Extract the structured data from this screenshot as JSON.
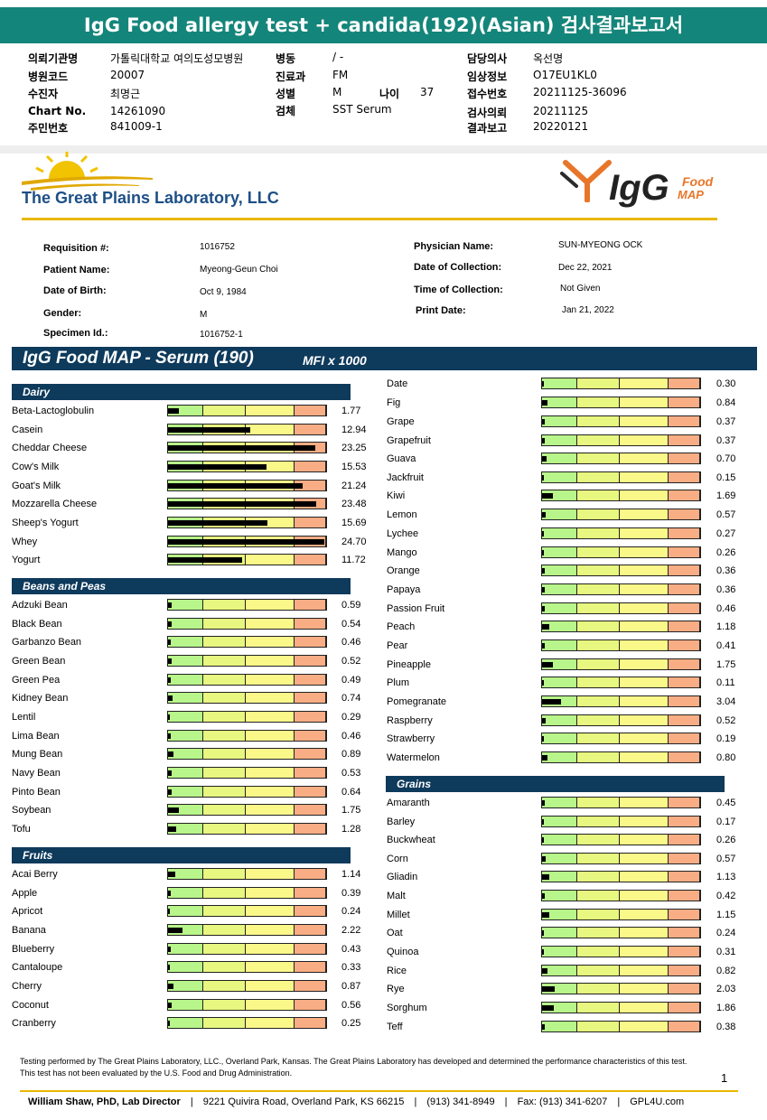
{
  "header": {
    "title": "IgG Food allergy test + candida(192)(Asian) 검사결과보고서",
    "col1": [
      {
        "label": "의뢰기관명",
        "value": "가톨릭대학교 여의도성모병원"
      },
      {
        "label": "병원코드",
        "value": "20007"
      },
      {
        "label": "수진자",
        "value": "최명근"
      },
      {
        "label": "Chart No.",
        "value": "14261090"
      },
      {
        "label": "주민번호",
        "value": "841009-1"
      }
    ],
    "col2": [
      {
        "label": "병동",
        "value": "/ -"
      },
      {
        "label": "진료과",
        "value": "FM"
      },
      {
        "label": "성별",
        "value": "M"
      },
      {
        "label": "검체",
        "value": "SST Serum"
      }
    ],
    "age": {
      "label": "나이",
      "value": "37"
    },
    "col3": [
      {
        "label": "담당의사",
        "value": "옥선명"
      },
      {
        "label": "임상정보",
        "value": "O17EU1KL0"
      },
      {
        "label": "접수번호",
        "value": "20211125-36096"
      },
      {
        "label": "검사의뢰",
        "value": "20211125"
      },
      {
        "label": "결과보고",
        "value": "20220121"
      }
    ]
  },
  "lab": {
    "name": "The Great Plains Laboratory, LLC",
    "logo_main": "IgG",
    "logo_food": "Food",
    "logo_map": "MAP",
    "colors": {
      "gold": "#e8b800",
      "navy": "#0e3a5c",
      "orange": "#e8762a"
    }
  },
  "patient": {
    "left": [
      {
        "label": "Requisition #:",
        "value": "1016752"
      },
      {
        "label": "Patient Name:",
        "value": "Myeong-Geun Choi"
      },
      {
        "label": "Date of Birth:",
        "value": "Oct 9, 1984"
      },
      {
        "label": "Gender:",
        "value": "M"
      },
      {
        "label": "Specimen Id.:",
        "value": "1016752-1"
      }
    ],
    "right": [
      {
        "label": "Physician Name:",
        "value": "SUN-MYEONG OCK"
      },
      {
        "label": "Date of Collection:",
        "value": "Dec 22, 2021"
      },
      {
        "label": "Time of Collection:",
        "value": "Not Given"
      },
      {
        "label": "Print Date:",
        "value": "Jan 21, 2022"
      }
    ]
  },
  "report": {
    "title": "IgG Food MAP - Serum (190)",
    "units": "MFI x 1000",
    "scale_max": 25,
    "zone_colors": [
      "#b8f58a",
      "#e8f780",
      "#fbf88a",
      "#f9ad84"
    ],
    "sections": [
      {
        "name": "Dairy",
        "items": [
          {
            "name": "Beta-Lactoglobulin",
            "value": "1.77"
          },
          {
            "name": "Casein",
            "value": "12.94"
          },
          {
            "name": "Cheddar Cheese",
            "value": "23.25"
          },
          {
            "name": "Cow's Milk",
            "value": "15.53"
          },
          {
            "name": "Goat's Milk",
            "value": "21.24"
          },
          {
            "name": "Mozzarella Cheese",
            "value": "23.48"
          },
          {
            "name": "Sheep's Yogurt",
            "value": "15.69"
          },
          {
            "name": "Whey",
            "value": "24.70"
          },
          {
            "name": "Yogurt",
            "value": "11.72"
          }
        ]
      },
      {
        "name": "Beans and Peas",
        "items": [
          {
            "name": "Adzuki Bean",
            "value": "0.59"
          },
          {
            "name": "Black Bean",
            "value": "0.54"
          },
          {
            "name": "Garbanzo Bean",
            "value": "0.46"
          },
          {
            "name": "Green Bean",
            "value": "0.52"
          },
          {
            "name": "Green Pea",
            "value": "0.49"
          },
          {
            "name": "Kidney Bean",
            "value": "0.74"
          },
          {
            "name": "Lentil",
            "value": "0.29"
          },
          {
            "name": "Lima Bean",
            "value": "0.46"
          },
          {
            "name": "Mung Bean",
            "value": "0.89"
          },
          {
            "name": "Navy Bean",
            "value": "0.53"
          },
          {
            "name": "Pinto Bean",
            "value": "0.64"
          },
          {
            "name": "Soybean",
            "value": "1.75"
          },
          {
            "name": "Tofu",
            "value": "1.28"
          }
        ]
      },
      {
        "name": "Fruits",
        "items": [
          {
            "name": "Acai Berry",
            "value": "1.14"
          },
          {
            "name": "Apple",
            "value": "0.39"
          },
          {
            "name": "Apricot",
            "value": "0.24"
          },
          {
            "name": "Banana",
            "value": "2.22"
          },
          {
            "name": "Blueberry",
            "value": "0.43"
          },
          {
            "name": "Cantaloupe",
            "value": "0.33"
          },
          {
            "name": "Cherry",
            "value": "0.87"
          },
          {
            "name": "Coconut",
            "value": "0.56"
          },
          {
            "name": "Cranberry",
            "value": "0.25"
          }
        ]
      },
      {
        "name": "",
        "items": [
          {
            "name": "Date",
            "value": "0.30"
          },
          {
            "name": "Fig",
            "value": "0.84"
          },
          {
            "name": "Grape",
            "value": "0.37"
          },
          {
            "name": "Grapefruit",
            "value": "0.37"
          },
          {
            "name": "Guava",
            "value": "0.70"
          },
          {
            "name": "Jackfruit",
            "value": "0.15"
          },
          {
            "name": "Kiwi",
            "value": "1.69"
          },
          {
            "name": "Lemon",
            "value": "0.57"
          },
          {
            "name": "Lychee",
            "value": "0.27"
          },
          {
            "name": "Mango",
            "value": "0.26"
          },
          {
            "name": "Orange",
            "value": "0.36"
          },
          {
            "name": "Papaya",
            "value": "0.36"
          },
          {
            "name": "Passion Fruit",
            "value": "0.46"
          },
          {
            "name": "Peach",
            "value": "1.18"
          },
          {
            "name": "Pear",
            "value": "0.41"
          },
          {
            "name": "Pineapple",
            "value": "1.75"
          },
          {
            "name": "Plum",
            "value": "0.11"
          },
          {
            "name": "Pomegranate",
            "value": "3.04"
          },
          {
            "name": "Raspberry",
            "value": "0.52"
          },
          {
            "name": "Strawberry",
            "value": "0.19"
          },
          {
            "name": "Watermelon",
            "value": "0.80"
          }
        ]
      },
      {
        "name": "Grains",
        "items": [
          {
            "name": "Amaranth",
            "value": "0.45"
          },
          {
            "name": "Barley",
            "value": "0.17"
          },
          {
            "name": "Buckwheat",
            "value": "0.26"
          },
          {
            "name": "Corn",
            "value": "0.57"
          },
          {
            "name": "Gliadin",
            "value": "1.13"
          },
          {
            "name": "Malt",
            "value": "0.42"
          },
          {
            "name": "Millet",
            "value": "1.15"
          },
          {
            "name": "Oat",
            "value": "0.24"
          },
          {
            "name": "Quinoa",
            "value": "0.31"
          },
          {
            "name": "Rice",
            "value": "0.82"
          },
          {
            "name": "Rye",
            "value": "2.03"
          },
          {
            "name": "Sorghum",
            "value": "1.86"
          },
          {
            "name": "Teff",
            "value": "0.38"
          }
        ]
      }
    ]
  },
  "footer": {
    "note": "Testing performed by The Great Plains Laboratory, LLC., Overland Park, Kansas.  The Great Plains Laboratory has developed and determined the performance characteristics of this test.  This test has not been evaluated by the U.S.  Food and Drug Administration.",
    "page_number": "1",
    "director": "William Shaw, PhD, Lab Director",
    "address": "9221 Quivira Road, Overland Park, KS 66215",
    "phone": "(913) 341-8949",
    "fax": "Fax: (913) 341-6207",
    "web": "GPL4U.com"
  }
}
